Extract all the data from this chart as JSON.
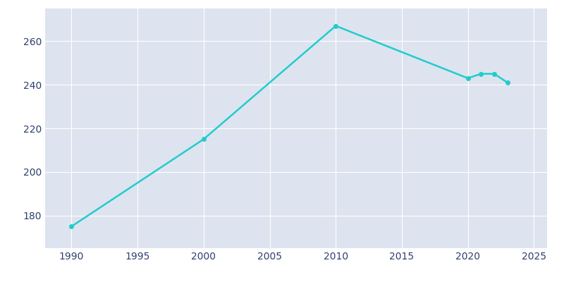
{
  "years": [
    1990,
    2000,
    2010,
    2020,
    2021,
    2022,
    2023
  ],
  "population": [
    175,
    215,
    267,
    243,
    245,
    245,
    241
  ],
  "line_color": "#22CCCC",
  "fig_bg_color": "#FFFFFF",
  "plot_bg_color": "#DDE4EF",
  "tick_color": "#2E3F6E",
  "grid_color": "#FFFFFF",
  "xlim": [
    1988,
    2026
  ],
  "ylim": [
    165,
    275
  ],
  "xticks": [
    1990,
    1995,
    2000,
    2005,
    2010,
    2015,
    2020,
    2025
  ],
  "yticks": [
    180,
    200,
    220,
    240,
    260
  ],
  "linewidth": 1.8,
  "markersize": 4
}
